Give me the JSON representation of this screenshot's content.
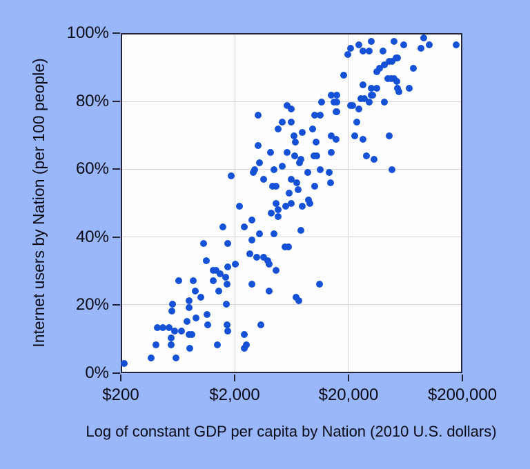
{
  "figure": {
    "background_color": "#99b7fa",
    "plot_background": "#fdfdfe",
    "axis_color": "#23233a",
    "grid_color": "#d5d5d8",
    "dot_color": "#1551d6"
  },
  "chart_data": {
    "type": "scatter",
    "title": "",
    "xlabel": "Log of constant GDP per capita by Nation (2010 U.S. dollars)",
    "ylabel": "Internet users by Nation (per 100 people)",
    "x_scale": "log",
    "xlim": [
      200,
      200000
    ],
    "ylim": [
      0,
      100
    ],
    "x_ticks": [
      "$200",
      "$2,000",
      "$20,000",
      "$200,000"
    ],
    "x_tick_values": [
      200,
      2000,
      20000,
      200000
    ],
    "y_ticks": [
      "0%",
      "20%",
      "40%",
      "60%",
      "80%",
      "100%"
    ],
    "y_tick_values": [
      0,
      20,
      40,
      60,
      80,
      100
    ],
    "grid": true,
    "legend": "none",
    "points": [
      [
        32000,
        98
      ],
      [
        51000,
        98
      ],
      [
        62000,
        97
      ],
      [
        93000,
        99
      ],
      [
        105000,
        97
      ],
      [
        180000,
        97
      ],
      [
        88000,
        96
      ],
      [
        25000,
        97
      ],
      [
        21000,
        96
      ],
      [
        19800,
        94
      ],
      [
        27000,
        95
      ],
      [
        31000,
        95
      ],
      [
        41000,
        95
      ],
      [
        53000,
        93
      ],
      [
        55000,
        93
      ],
      [
        49000,
        92
      ],
      [
        46000,
        92
      ],
      [
        42000,
        91
      ],
      [
        38000,
        90
      ],
      [
        36000,
        89
      ],
      [
        76000,
        90
      ],
      [
        45000,
        87
      ],
      [
        48000,
        87
      ],
      [
        51000,
        87
      ],
      [
        54000,
        86
      ],
      [
        27000,
        85
      ],
      [
        32000,
        84
      ],
      [
        36000,
        84
      ],
      [
        55000,
        84
      ],
      [
        56000,
        83
      ],
      [
        70000,
        84
      ],
      [
        26000,
        81
      ],
      [
        28000,
        81
      ],
      [
        31000,
        80
      ],
      [
        32000,
        82
      ],
      [
        33000,
        82
      ],
      [
        42000,
        80
      ],
      [
        22000,
        79
      ],
      [
        25000,
        78
      ],
      [
        21000,
        79
      ],
      [
        24000,
        74
      ],
      [
        23000,
        70
      ],
      [
        27000,
        69
      ],
      [
        46000,
        70
      ],
      [
        29000,
        64
      ],
      [
        34000,
        63
      ],
      [
        49000,
        60
      ],
      [
        18400,
        88
      ],
      [
        14300,
        82
      ],
      [
        16000,
        82
      ],
      [
        15100,
        80
      ],
      [
        15800,
        80
      ],
      [
        11600,
        80
      ],
      [
        5800,
        79
      ],
      [
        6300,
        78
      ],
      [
        10200,
        76
      ],
      [
        11300,
        76
      ],
      [
        15600,
        77
      ],
      [
        16000,
        77
      ],
      [
        3200,
        76
      ],
      [
        5200,
        74
      ],
      [
        6300,
        74
      ],
      [
        4800,
        72
      ],
      [
        9700,
        72
      ],
      [
        7900,
        71
      ],
      [
        6600,
        70
      ],
      [
        14200,
        70
      ],
      [
        6800,
        68
      ],
      [
        10400,
        68
      ],
      [
        15600,
        69
      ],
      [
        3200,
        67
      ],
      [
        4100,
        65
      ],
      [
        5800,
        65
      ],
      [
        6700,
        64
      ],
      [
        7600,
        63
      ],
      [
        7400,
        62
      ],
      [
        10000,
        64
      ],
      [
        10500,
        64
      ],
      [
        14200,
        65
      ],
      [
        3300,
        62
      ],
      [
        3000,
        60
      ],
      [
        2900,
        59
      ],
      [
        4400,
        60
      ],
      [
        5200,
        61
      ],
      [
        3600,
        57
      ],
      [
        8800,
        59
      ],
      [
        11300,
        60
      ],
      [
        13600,
        59
      ],
      [
        6300,
        57
      ],
      [
        7000,
        56
      ],
      [
        4300,
        55
      ],
      [
        4600,
        55
      ],
      [
        7200,
        54
      ],
      [
        10100,
        55
      ],
      [
        14000,
        56
      ],
      [
        6000,
        53
      ],
      [
        8900,
        51
      ],
      [
        9200,
        50
      ],
      [
        4600,
        50
      ],
      [
        4800,
        48
      ],
      [
        5600,
        49
      ],
      [
        6300,
        50
      ],
      [
        2200,
        49
      ],
      [
        4200,
        47
      ],
      [
        4800,
        46
      ],
      [
        7900,
        49
      ],
      [
        2400,
        43
      ],
      [
        2800,
        45
      ],
      [
        3300,
        41
      ],
      [
        4400,
        41
      ],
      [
        7600,
        42
      ],
      [
        2800,
        39
      ],
      [
        3100,
        34
      ],
      [
        5500,
        37
      ],
      [
        5900,
        37
      ],
      [
        2700,
        35
      ],
      [
        3600,
        34
      ],
      [
        3900,
        33
      ],
      [
        1840,
        58
      ],
      [
        1560,
        43
      ],
      [
        1050,
        38
      ],
      [
        1710,
        38
      ],
      [
        1110,
        33
      ],
      [
        1280,
        30
      ],
      [
        1350,
        30
      ],
      [
        1470,
        29
      ],
      [
        1710,
        31
      ],
      [
        630,
        27
      ],
      [
        850,
        27
      ],
      [
        1280,
        27
      ],
      [
        1640,
        28
      ],
      [
        1690,
        26
      ],
      [
        890,
        24
      ],
      [
        1430,
        24
      ],
      [
        990,
        22
      ],
      [
        1670,
        20
      ],
      [
        560,
        20
      ],
      [
        780,
        21
      ],
      [
        780,
        19
      ],
      [
        550,
        18
      ],
      [
        1130,
        17
      ],
      [
        900,
        16
      ],
      [
        750,
        15
      ],
      [
        1140,
        14
      ],
      [
        1690,
        14
      ],
      [
        1710,
        12
      ],
      [
        410,
        13
      ],
      [
        460,
        13
      ],
      [
        520,
        13
      ],
      [
        580,
        12
      ],
      [
        670,
        12
      ],
      [
        780,
        11
      ],
      [
        540,
        10
      ],
      [
        830,
        11
      ],
      [
        400,
        8
      ],
      [
        540,
        8
      ],
      [
        790,
        7
      ],
      [
        1390,
        8
      ],
      [
        360,
        4
      ],
      [
        600,
        4
      ],
      [
        210,
        2.5
      ],
      [
        2000,
        32
      ],
      [
        4000,
        32
      ],
      [
        4600,
        30
      ],
      [
        2800,
        26
      ],
      [
        4000,
        24
      ],
      [
        6900,
        22
      ],
      [
        7300,
        21
      ],
      [
        11200,
        26
      ],
      [
        3400,
        14
      ],
      [
        2400,
        11
      ],
      [
        2500,
        8
      ],
      [
        2400,
        7
      ]
    ]
  }
}
